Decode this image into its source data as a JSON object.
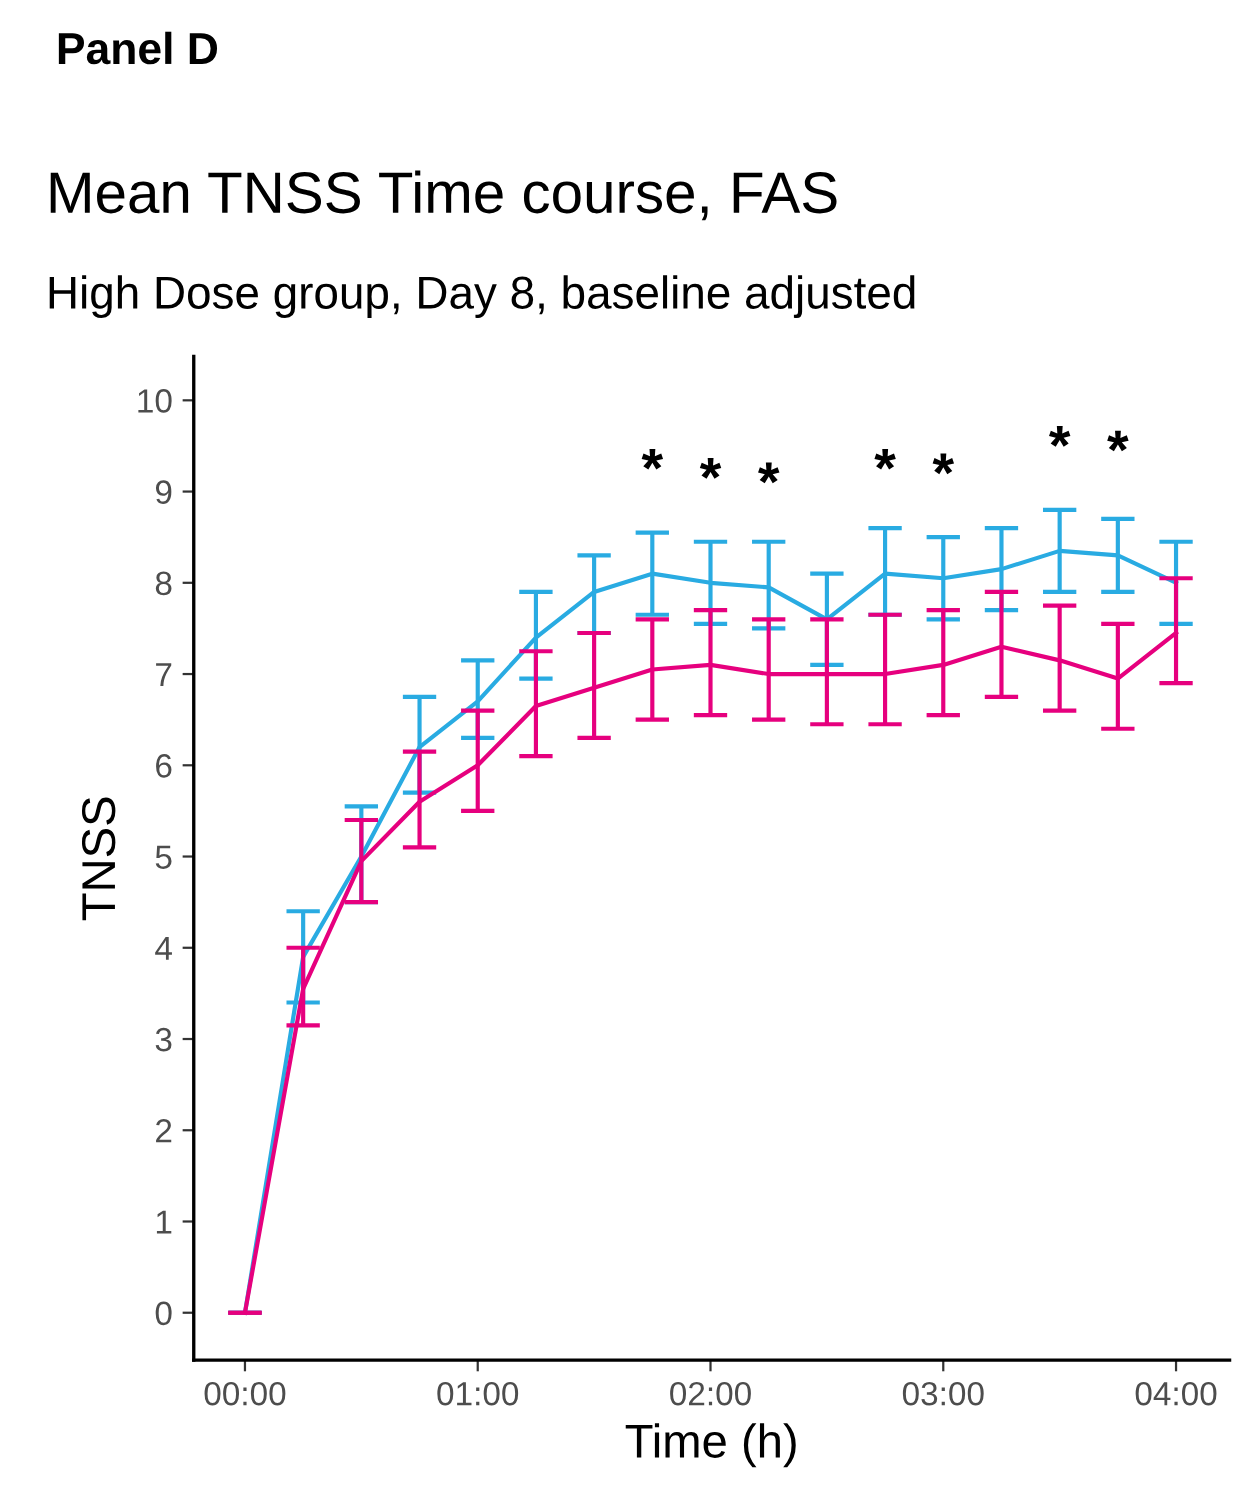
{
  "chart_data": {
    "type": "line",
    "title": "Mean TNSS Time course, FAS",
    "subtitle": "High Dose group, Day 8, baseline adjusted",
    "xlabel": "Time (h)",
    "ylabel": "TNSS",
    "x": [
      0,
      0.25,
      0.5,
      0.75,
      1.0,
      1.25,
      1.5,
      1.75,
      2.0,
      2.25,
      2.5,
      2.75,
      3.0,
      3.25,
      3.5,
      3.75,
      4.0
    ],
    "series": [
      {
        "color": "#29abe2",
        "values": [
          0,
          3.9,
          5.0,
          6.2,
          6.7,
          7.4,
          7.9,
          8.1,
          8.0,
          7.95,
          7.6,
          8.1,
          8.05,
          8.15,
          8.35,
          8.3,
          8.0
        ],
        "errors": [
          0,
          [
            3.4,
            4.4
          ],
          [
            4.5,
            5.55
          ],
          [
            5.7,
            6.75
          ],
          [
            6.3,
            7.15
          ],
          [
            6.95,
            7.9
          ],
          [
            7.45,
            8.3
          ],
          [
            7.65,
            8.55
          ],
          [
            7.55,
            8.45
          ],
          [
            7.5,
            8.45
          ],
          [
            7.1,
            8.1
          ],
          [
            7.65,
            8.6
          ],
          [
            7.6,
            8.5
          ],
          [
            7.7,
            8.6
          ],
          [
            7.9,
            8.8
          ],
          [
            7.9,
            8.7
          ],
          [
            7.55,
            8.45
          ]
        ]
      },
      {
        "color": "#e6007e",
        "values": [
          0,
          3.55,
          4.95,
          5.6,
          6.0,
          6.65,
          6.85,
          7.05,
          7.1,
          7.0,
          7.0,
          7.0,
          7.1,
          7.3,
          7.15,
          6.95,
          7.45
        ],
        "errors": [
          0,
          [
            3.15,
            4.0
          ],
          [
            4.5,
            5.4
          ],
          [
            5.1,
            6.15
          ],
          [
            5.5,
            6.6
          ],
          [
            6.1,
            7.25
          ],
          [
            6.3,
            7.45
          ],
          [
            6.5,
            7.6
          ],
          [
            6.55,
            7.7
          ],
          [
            6.5,
            7.6
          ],
          [
            6.45,
            7.6
          ],
          [
            6.45,
            7.65
          ],
          [
            6.55,
            7.7
          ],
          [
            6.75,
            7.9
          ],
          [
            6.6,
            7.75
          ],
          [
            6.4,
            7.55
          ],
          [
            6.9,
            8.05
          ]
        ]
      }
    ],
    "xlim": [
      -0.22,
      4.23
    ],
    "ylim": [
      -0.52,
      10.48
    ],
    "xticks": [
      {
        "value": 0,
        "label": "00:00"
      },
      {
        "value": 1,
        "label": "01:00"
      },
      {
        "value": 2,
        "label": "02:00"
      },
      {
        "value": 3,
        "label": "03:00"
      },
      {
        "value": 4,
        "label": "04:00"
      }
    ],
    "yticks": [
      0,
      1,
      2,
      3,
      4,
      5,
      6,
      7,
      8,
      9,
      10
    ],
    "grid": false,
    "legend": false,
    "marker": "none",
    "line_style": "solid",
    "annotations": [
      "Panel D",
      {
        "text": "*",
        "x": 1.75,
        "y": 8.1
      },
      {
        "text": "*",
        "x": 2.0,
        "y": 8.0
      },
      {
        "text": "*",
        "x": 2.25,
        "y": 7.95
      },
      {
        "text": "*",
        "x": 2.75,
        "y": 8.1
      },
      {
        "text": "*",
        "x": 3.0,
        "y": 8.05
      },
      {
        "text": "*",
        "x": 3.5,
        "y": 8.35
      },
      {
        "text": "*",
        "x": 3.75,
        "y": 8.3
      }
    ]
  }
}
